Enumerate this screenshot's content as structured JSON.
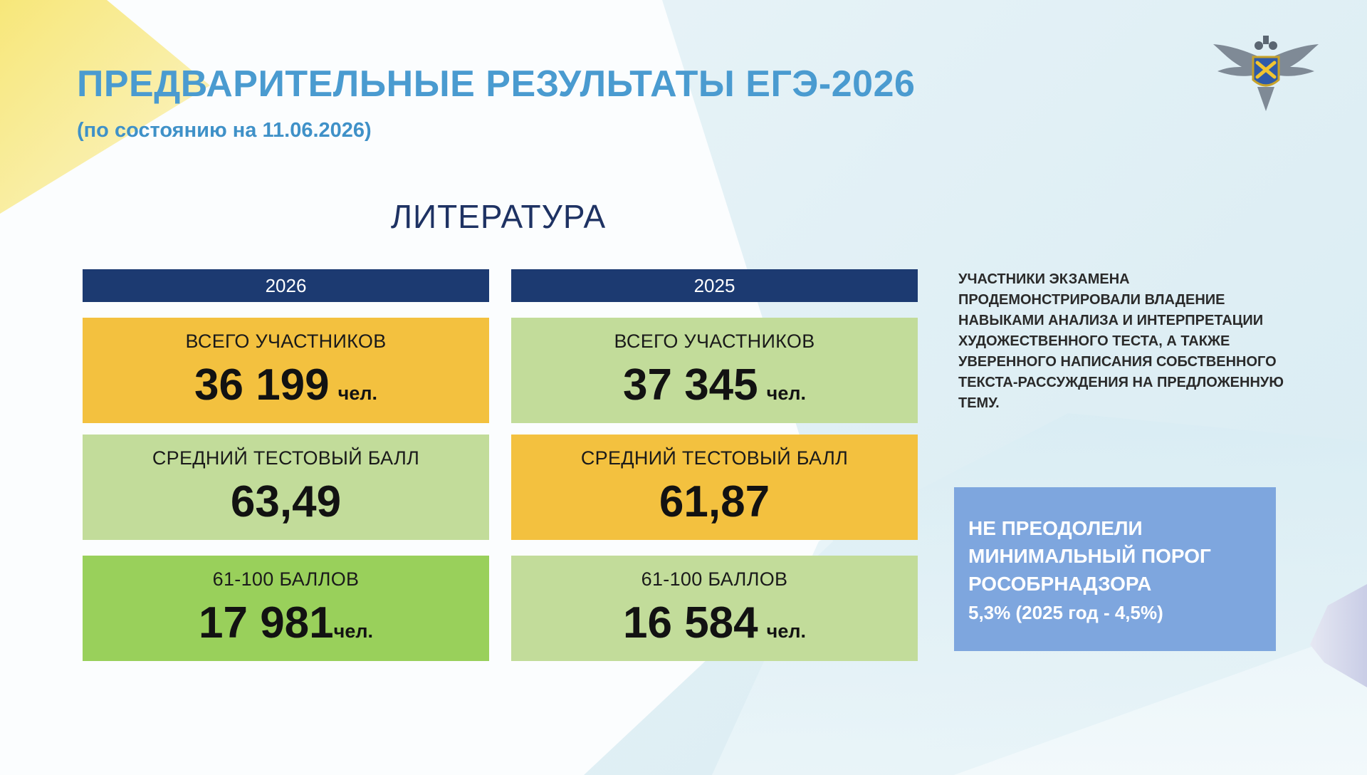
{
  "slide": {
    "title": "ПРЕДВАРИТЕЛЬНЫЕ РЕЗУЛЬТАТЫ ЕГЭ-2026",
    "subtitle": "(по состоянию на 11.06.2026)",
    "subject": "ЛИТЕРАТУРА",
    "logo_icon": "eagle-emblem-icon"
  },
  "columns": [
    {
      "year": "2026",
      "cards": [
        {
          "label": "ВСЕГО УЧАСТНИКОВ",
          "value": "36 199",
          "unit": "чел.",
          "color": "#f3c13f"
        },
        {
          "label": "СРЕДНИЙ ТЕСТОВЫЙ БАЛЛ",
          "value": "63,49",
          "color": "#c2dc9a"
        },
        {
          "label": "61-100 БАЛЛОВ",
          "value": "17 981",
          "unit": "чел.",
          "color": "#99d05b"
        }
      ]
    },
    {
      "year": "2025",
      "cards": [
        {
          "label": "ВСЕГО УЧАСТНИКОВ",
          "value": "37 345",
          "unit": "чел.",
          "color": "#c2dc9a"
        },
        {
          "label": "СРЕДНИЙ ТЕСТОВЫЙ БАЛЛ",
          "value": "61,87",
          "color": "#f3c13f"
        },
        {
          "label": "61-100 БАЛЛОВ",
          "value": "16 584",
          "unit": "чел.",
          "color": "#c2dc9a"
        }
      ]
    }
  ],
  "note": "УЧАСТНИКИ ЭКЗАМЕНА ПРОДЕМОНСТРИРОВАЛИ ВЛАДЕНИЕ НАВЫКАМИ АНАЛИЗА И ИНТЕРПРЕТАЦИИ ХУДОЖЕСТВЕННОГО ТЕСТА, А ТАКЖЕ УВЕРЕННОГО НАПИСАНИЯ СОБСТВЕННОГО ТЕКСТА-РАССУЖДЕНИЯ НА ПРЕДЛОЖЕННУЮ ТЕМУ.",
  "threshold": {
    "title": "НЕ ПРЕОДОЛЕЛИ МИНИМАЛЬНЫЙ ПОРОГ РОСОБРНАДЗОРА",
    "value": "5,3% (2025 год - 4,5%)"
  },
  "colors": {
    "title": "#4a9bd0",
    "header_bar": "#1c3a71",
    "orange_card": "#f3c13f",
    "pale_green_card": "#c2dc9a",
    "green_card": "#99d05b",
    "threshold_box": "#7ea6de"
  }
}
